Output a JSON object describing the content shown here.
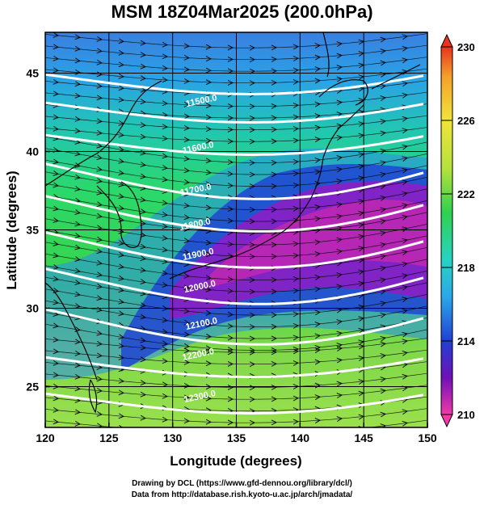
{
  "title": "MSM 18Z04Mar2025 (200.0hPa)",
  "footer": {
    "line1": "Drawing by DCL (https://www.gfd-dennou.org/library/dcl/)",
    "line2": "Data from http://database.rish.kyoto-u.ac.jp/arch/jmadata/"
  },
  "map": {
    "x_label": "Longitude (degrees)",
    "y_label": "Latitude  (degrees)",
    "x_ticks": [
      "120",
      "125",
      "130",
      "135",
      "140",
      "145",
      "150"
    ],
    "y_ticks": [
      "25",
      "30",
      "35",
      "40",
      "45"
    ],
    "x_range": [
      120,
      150
    ],
    "y_range": [
      22.4,
      47.6
    ],
    "contour_labels": [
      "11500.0",
      "11600.0",
      "11700.0",
      "11800.0",
      "11900.0",
      "12000.0",
      "12100.0",
      "12200.0",
      "12300.0"
    ]
  },
  "colorbar": {
    "ticks": [
      "230",
      "226",
      "222",
      "218",
      "214",
      "210"
    ],
    "range": [
      210,
      230
    ]
  }
}
